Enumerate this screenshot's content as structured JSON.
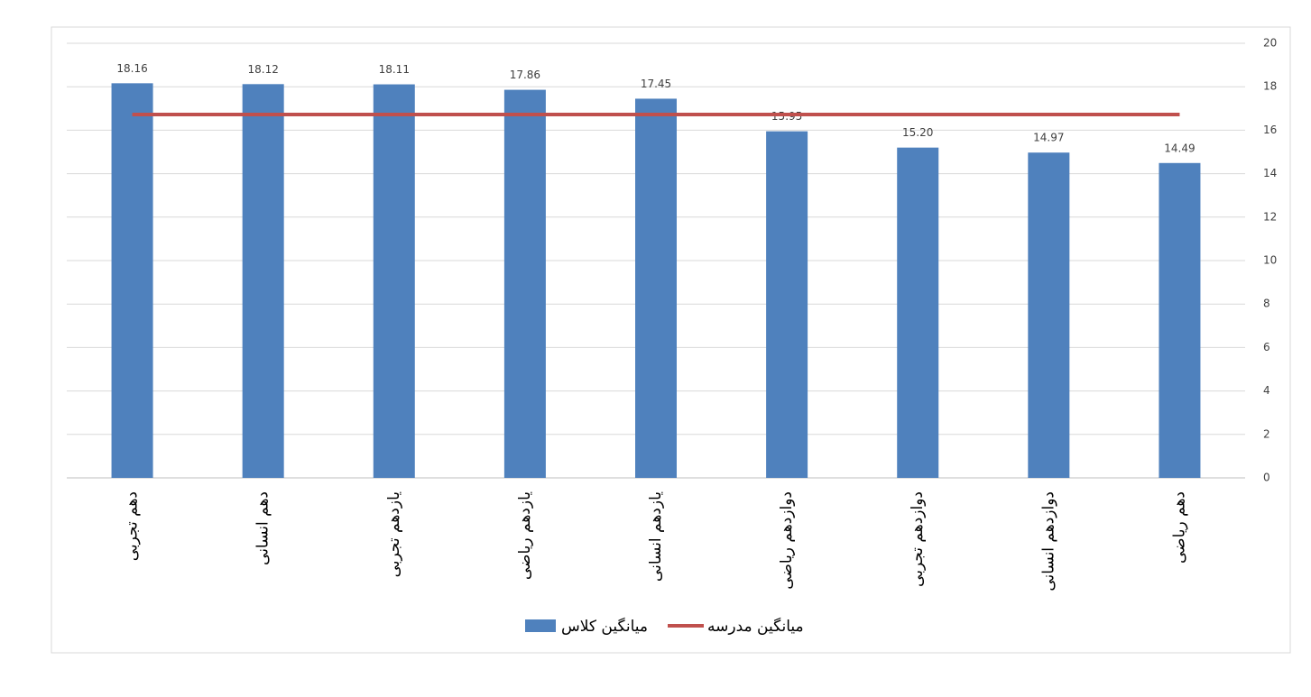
{
  "chart_data": {
    "type": "combo",
    "categories": [
      "دهم تجربی",
      "دهم انسانی",
      "یازدهم تجربی",
      "یازدهم ریاضی",
      "یازدهم انسانی",
      "دوازدهم ریاضی",
      "دوازدهم تجربی",
      "دوازدهم انسانی",
      "دهم ریاضی"
    ],
    "series": [
      {
        "name": "میانگین کلاس",
        "type": "bar",
        "color": "#4f81bd",
        "values": [
          18.16,
          18.12,
          18.11,
          17.86,
          17.45,
          15.95,
          15.2,
          14.97,
          14.49
        ],
        "value_labels": [
          "18.16",
          "18.12",
          "18.11",
          "17.86",
          "17.45",
          "15.95",
          "15.20",
          "14.97",
          "14.49"
        ]
      },
      {
        "name": "میانگین مدرسه",
        "type": "line",
        "color": "#c0504d",
        "values": [
          16.72,
          16.72,
          16.72,
          16.72,
          16.72,
          16.72,
          16.72,
          16.72,
          16.72
        ]
      }
    ],
    "ylim": [
      0,
      20
    ],
    "yticks": [
      0,
      2,
      4,
      6,
      8,
      10,
      12,
      14,
      16,
      18,
      20
    ],
    "grid": true,
    "y_axis_side": "right",
    "legend": "bottom"
  }
}
